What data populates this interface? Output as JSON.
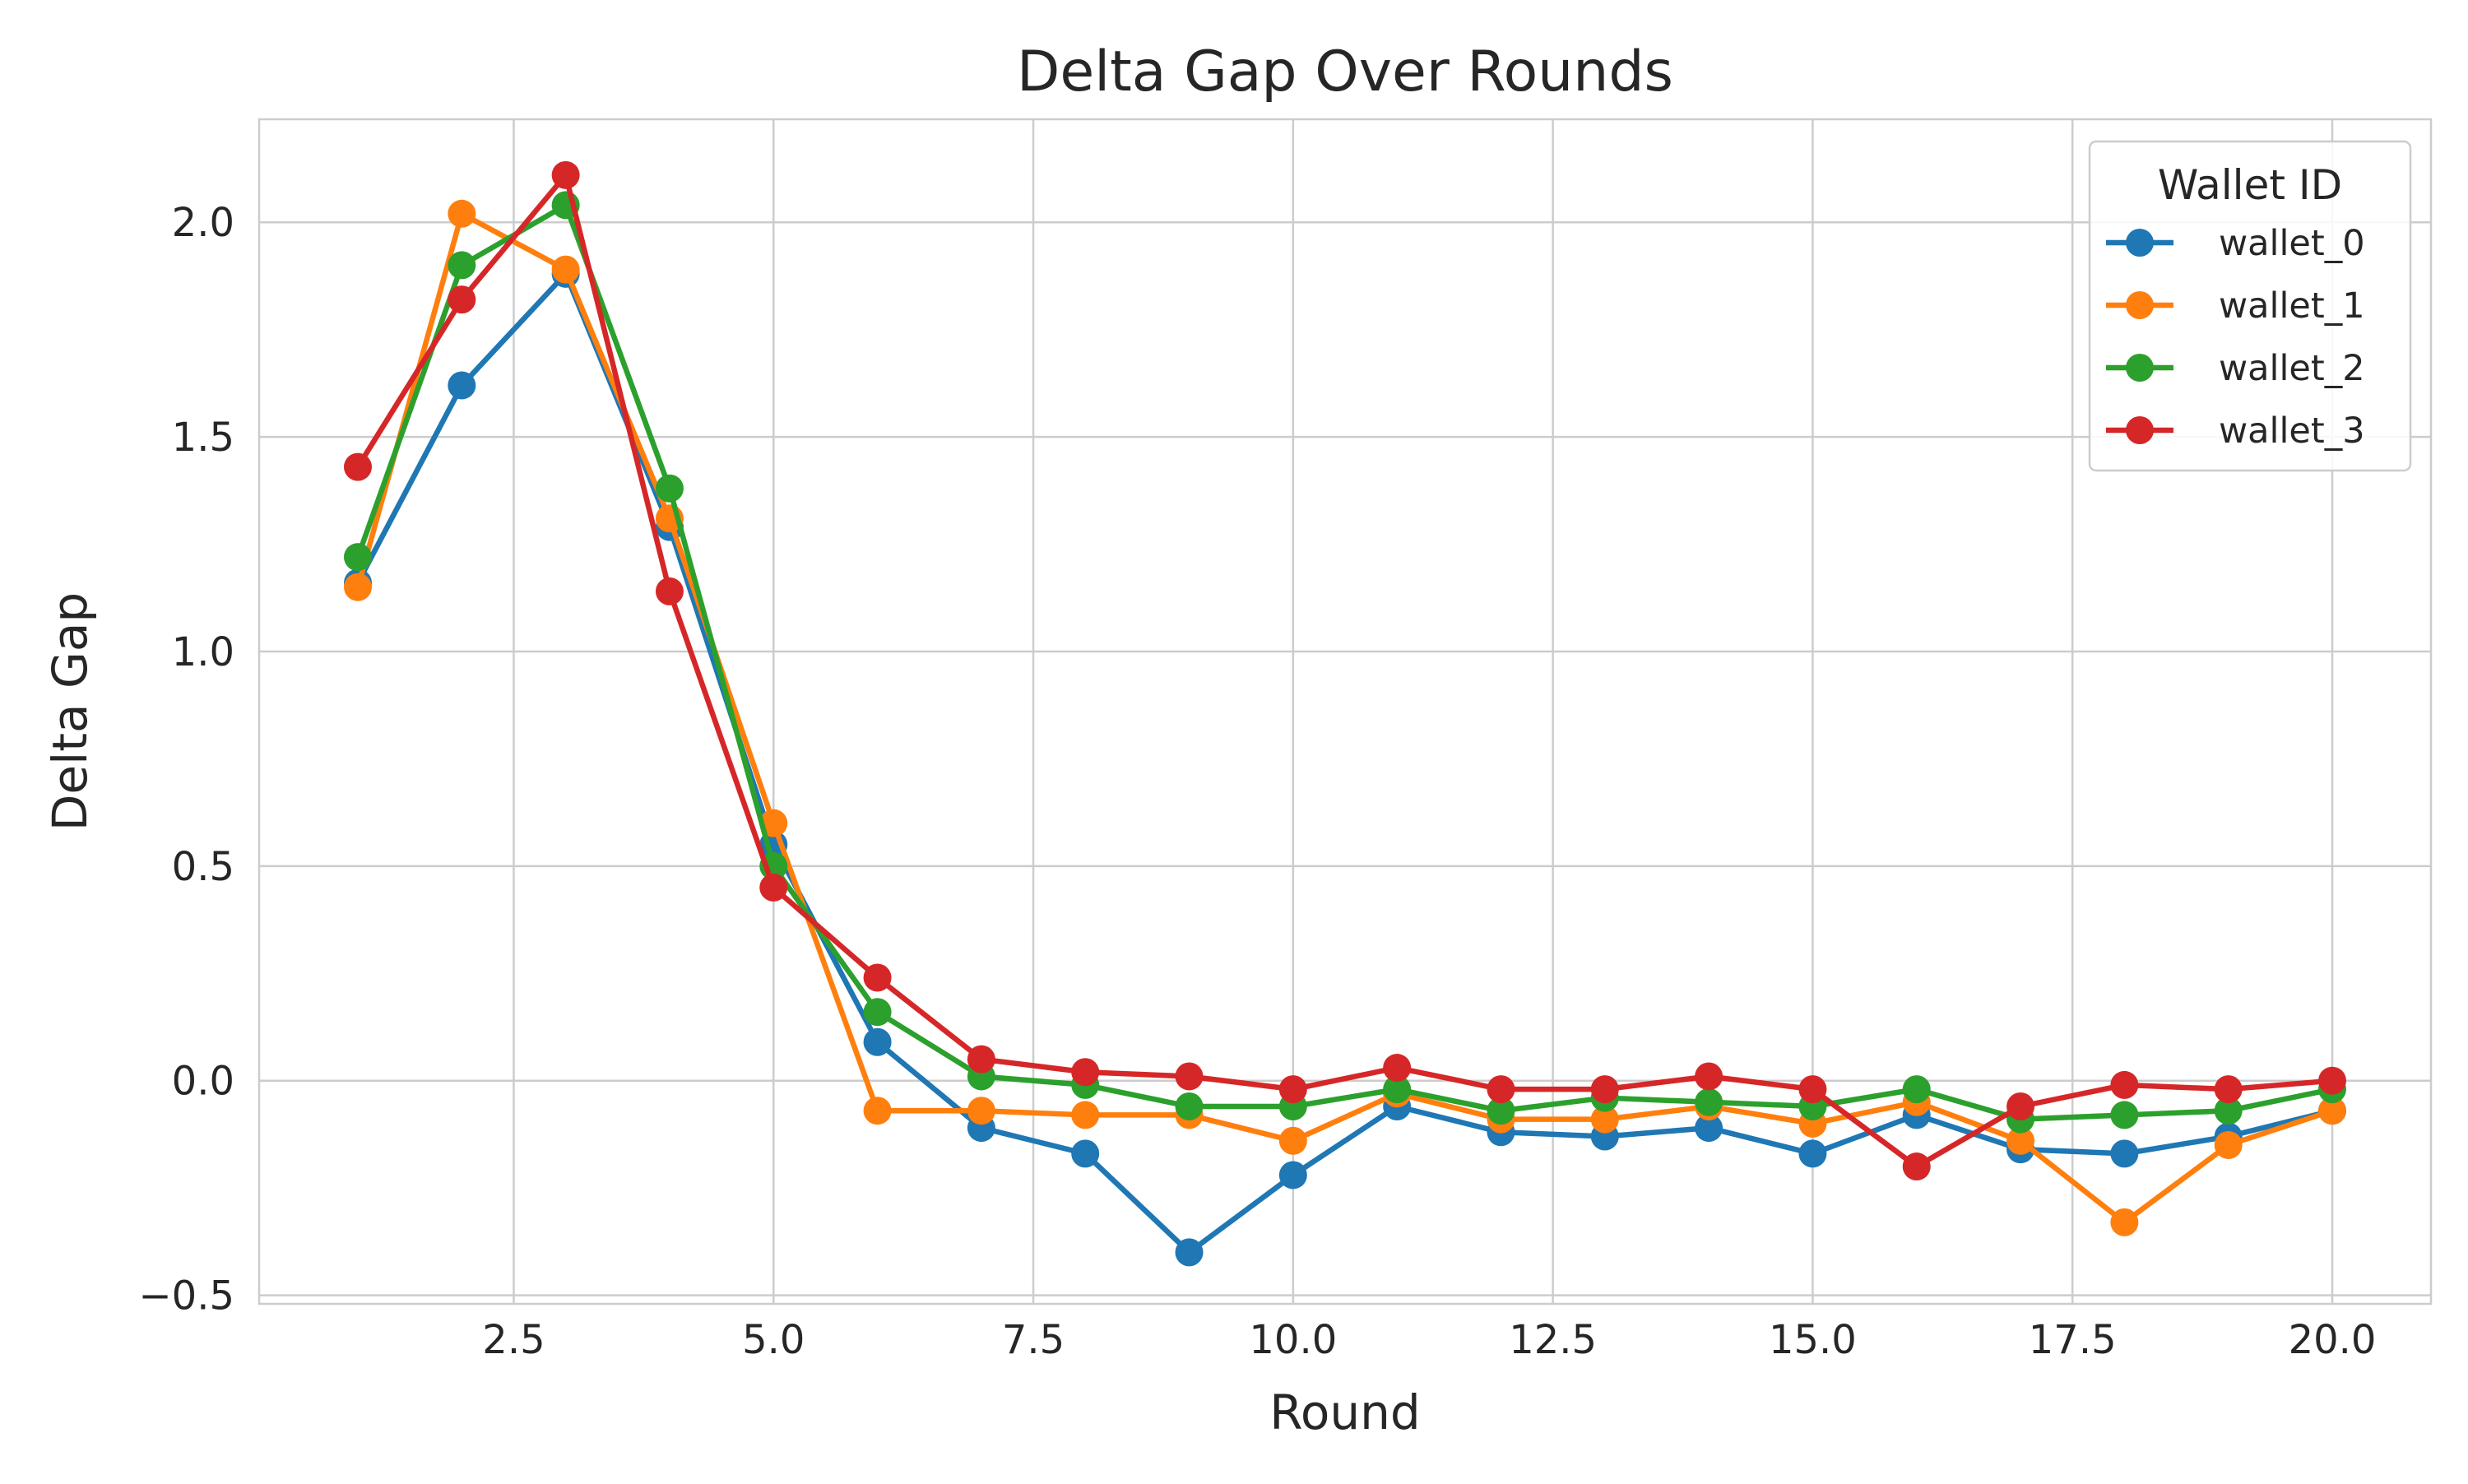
{
  "chart_data": {
    "type": "line",
    "title": "Delta Gap Over Rounds",
    "xlabel": "Round",
    "ylabel": "Delta Gap",
    "xlim": [
      0.05,
      20.95
    ],
    "ylim": [
      -0.52,
      2.24
    ],
    "xticks": [
      2.5,
      5.0,
      7.5,
      10.0,
      12.5,
      15.0,
      17.5,
      20.0
    ],
    "xtick_labels": [
      "2.5",
      "5.0",
      "7.5",
      "10.0",
      "12.5",
      "15.0",
      "17.5",
      "20.0"
    ],
    "yticks": [
      -0.5,
      0.0,
      0.5,
      1.0,
      1.5,
      2.0
    ],
    "ytick_labels": [
      "−0.5",
      "0.0",
      "0.5",
      "1.0",
      "1.5",
      "2.0"
    ],
    "grid": true,
    "legend": {
      "title": "Wallet ID",
      "placement": "top-right"
    },
    "x": [
      1,
      2,
      3,
      4,
      5,
      6,
      7,
      8,
      9,
      10,
      11,
      12,
      13,
      14,
      15,
      16,
      17,
      18,
      19,
      20
    ],
    "series": [
      {
        "name": "wallet_0",
        "color": "#1f77b4",
        "values": [
          1.16,
          1.62,
          1.88,
          1.29,
          0.55,
          0.09,
          -0.11,
          -0.17,
          -0.4,
          -0.22,
          -0.06,
          -0.12,
          -0.13,
          -0.11,
          -0.17,
          -0.08,
          -0.16,
          -0.17,
          -0.13,
          -0.07
        ]
      },
      {
        "name": "wallet_1",
        "color": "#ff7f0e",
        "values": [
          1.15,
          2.02,
          1.89,
          1.31,
          0.6,
          -0.07,
          -0.07,
          -0.08,
          -0.08,
          -0.14,
          -0.03,
          -0.09,
          -0.09,
          -0.06,
          -0.1,
          -0.05,
          -0.14,
          -0.33,
          -0.15,
          -0.07
        ]
      },
      {
        "name": "wallet_2",
        "color": "#2ca02c",
        "values": [
          1.22,
          1.9,
          2.04,
          1.38,
          0.5,
          0.16,
          0.01,
          -0.01,
          -0.06,
          -0.06,
          -0.02,
          -0.07,
          -0.04,
          -0.05,
          -0.06,
          -0.02,
          -0.09,
          -0.08,
          -0.07,
          -0.02
        ]
      },
      {
        "name": "wallet_3",
        "color": "#d62728",
        "values": [
          1.43,
          1.82,
          2.11,
          1.14,
          0.45,
          0.24,
          0.05,
          0.02,
          0.01,
          -0.02,
          0.03,
          -0.02,
          -0.02,
          0.01,
          -0.02,
          -0.2,
          -0.06,
          -0.01,
          -0.02,
          0.0
        ]
      }
    ]
  }
}
